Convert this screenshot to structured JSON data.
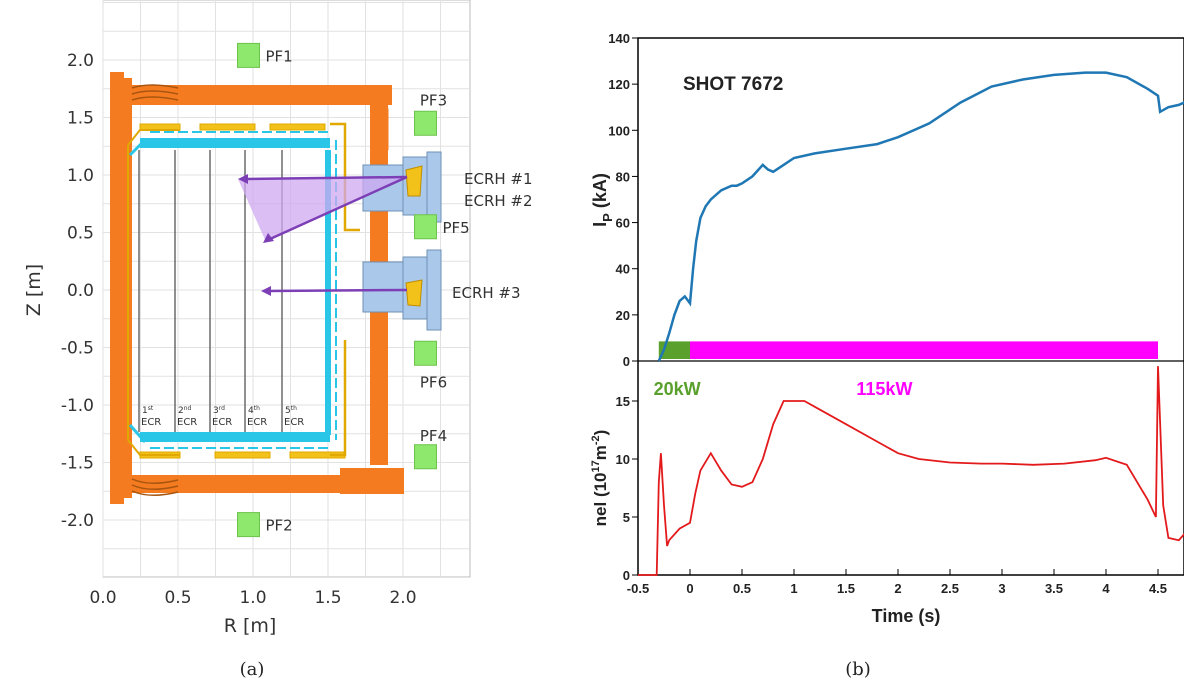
{
  "captions": {
    "a": "(a)",
    "b": "(b)"
  },
  "chart_data": [
    {
      "type": "diagram",
      "xlabel": "R [m]",
      "ylabel": "Z [m]",
      "xlim": [
        0.0,
        2.45
      ],
      "ylim": [
        -2.5,
        2.45
      ],
      "grid": true,
      "x_ticks": [
        "0.0",
        "0.5",
        "1.0",
        "1.5",
        "2.0"
      ],
      "y_ticks": [
        "2.0",
        "1.5",
        "1.0",
        "0.5",
        "0.0",
        "-0.5",
        "-1.0",
        "-1.5",
        "-2.0"
      ],
      "pf_coils": [
        {
          "label": "PF1",
          "r": 0.97,
          "z": 2.04
        },
        {
          "label": "PF3",
          "r": 2.15,
          "z": 1.45
        },
        {
          "label": "PF5",
          "r": 2.15,
          "z": 0.55
        },
        {
          "label": "PF6",
          "r": 2.15,
          "z": -0.55
        },
        {
          "label": "PF4",
          "r": 2.15,
          "z": -1.45
        },
        {
          "label": "PF2",
          "r": 0.97,
          "z": -2.04
        }
      ],
      "ecrh_labels": [
        "ECRH #1",
        "ECRH #2",
        "ECRH #3"
      ],
      "ecr_layers": [
        {
          "n": "1",
          "sup": "st",
          "word": "ECR"
        },
        {
          "n": "2",
          "sup": "nd",
          "word": "ECR"
        },
        {
          "n": "3",
          "sup": "rd",
          "word": "ECR"
        },
        {
          "n": "4",
          "sup": "th",
          "word": "ECR"
        },
        {
          "n": "5",
          "sup": "th",
          "word": "ECR"
        }
      ]
    },
    {
      "type": "line",
      "annotation": "SHOT 7672",
      "ylabel_base": "I",
      "ylabel_sub": "P",
      "ylabel_tail": " (kA)",
      "ylim": [
        0,
        140
      ],
      "y_ticks": [
        0,
        20,
        40,
        60,
        80,
        100,
        120,
        140
      ],
      "series": [
        {
          "color": "#1f77b4",
          "x": [
            -0.3,
            -0.25,
            -0.2,
            -0.15,
            -0.1,
            -0.05,
            0.0,
            0.03,
            0.06,
            0.1,
            0.15,
            0.2,
            0.3,
            0.4,
            0.45,
            0.5,
            0.6,
            0.7,
            0.75,
            0.8,
            0.9,
            1.0,
            1.2,
            1.5,
            1.8,
            2.0,
            2.3,
            2.6,
            2.9,
            3.2,
            3.5,
            3.8,
            4.0,
            4.2,
            4.4,
            4.5,
            4.52,
            4.6,
            4.7,
            4.8
          ],
          "y": [
            0,
            5,
            12,
            20,
            26,
            28,
            25,
            40,
            52,
            62,
            67,
            70,
            74,
            76,
            76,
            77,
            80,
            85,
            83,
            82,
            85,
            88,
            90,
            92,
            94,
            97,
            103,
            112,
            119,
            122,
            124,
            125,
            125,
            123,
            118,
            115,
            108,
            110,
            111,
            113
          ]
        }
      ],
      "bars": [
        {
          "x0": -0.3,
          "x1": 0.0,
          "color": "#5aa02c"
        },
        {
          "x0": 0.0,
          "x1": 4.5,
          "color": "#ff00ff"
        }
      ]
    },
    {
      "type": "line",
      "xlabel": "Time (s)",
      "ylabel_base": "nel (10",
      "ylabel_sup1": "17",
      "ylabel_mid": "m",
      "ylabel_sup2": "-2",
      "ylabel_tail": ")",
      "xlim": [
        -0.5,
        4.8
      ],
      "ylim": [
        0,
        18
      ],
      "x_ticks": [
        "-0.5",
        "0",
        "0.5",
        "1",
        "1.5",
        "2",
        "2.5",
        "3",
        "3.5",
        "4",
        "4.5"
      ],
      "y_ticks": [
        0,
        5,
        10,
        15
      ],
      "power_labels": [
        {
          "text": "20kW",
          "color": "#5aa02c",
          "x": -0.35
        },
        {
          "text": "115kW",
          "color": "#ff00ff",
          "x": 1.6
        }
      ],
      "series": [
        {
          "color": "#e31a1c",
          "x": [
            -0.5,
            -0.32,
            -0.3,
            -0.28,
            -0.25,
            -0.22,
            -0.2,
            -0.1,
            0.0,
            0.05,
            0.1,
            0.2,
            0.3,
            0.4,
            0.5,
            0.6,
            0.7,
            0.8,
            0.9,
            1.0,
            1.1,
            1.2,
            1.5,
            1.8,
            2.0,
            2.2,
            2.5,
            2.8,
            3.0,
            3.3,
            3.6,
            3.9,
            4.0,
            4.2,
            4.3,
            4.4,
            4.48,
            4.5,
            4.55,
            4.6,
            4.7,
            4.8
          ],
          "y": [
            0,
            0,
            8,
            10.5,
            6,
            2.5,
            3,
            4,
            4.5,
            7,
            9,
            10.5,
            9,
            7.8,
            7.6,
            8,
            10,
            13,
            15,
            15,
            15,
            14.5,
            13,
            11.5,
            10.5,
            10,
            9.7,
            9.6,
            9.6,
            9.5,
            9.6,
            9.9,
            10.1,
            9.5,
            8,
            6.5,
            5,
            18,
            6,
            3.2,
            3,
            4
          ]
        }
      ]
    }
  ]
}
